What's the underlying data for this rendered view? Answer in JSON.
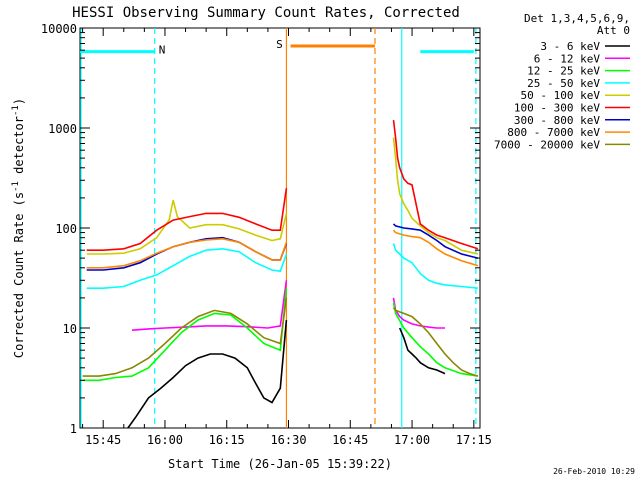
{
  "chart_data": {
    "type": "line",
    "title": "HESSI Observing Summary Count Rates, Corrected",
    "xlabel": "Start Time (26-Jan-05 15:39:22)",
    "ylabel_main": "Corrected Count Rate (s",
    "ylabel_sup1": "-1",
    "ylabel_mid": " detector",
    "ylabel_sup2": "-1",
    "ylabel_end": ")",
    "yscale": "log",
    "ylim": [
      1,
      10000
    ],
    "xlim_minutes": [
      39.37,
      136.5
    ],
    "x_ticks": [
      {
        "m": 45,
        "label": "15:45"
      },
      {
        "m": 60,
        "label": "16:00"
      },
      {
        "m": 75,
        "label": "16:15"
      },
      {
        "m": 90,
        "label": "16:30"
      },
      {
        "m": 105,
        "label": "16:45"
      },
      {
        "m": 120,
        "label": "17:00"
      },
      {
        "m": 135,
        "label": "17:15"
      }
    ],
    "y_ticks": [
      {
        "v": 1,
        "label": "1"
      },
      {
        "v": 10,
        "label": "10"
      },
      {
        "v": 100,
        "label": "100"
      },
      {
        "v": 1000,
        "label": "1000"
      },
      {
        "v": 10000,
        "label": "10000"
      }
    ],
    "legend_header": [
      "Det 1,3,4,5,6,9,",
      "Att 0"
    ],
    "legend_placement": "right",
    "series": [
      {
        "name": "3 - 6 keV",
        "color": "#000000",
        "segments": [
          {
            "x": [
              51,
              53,
              56,
              59,
              62,
              65,
              68,
              71,
              74,
              77,
              80,
              82,
              84,
              86,
              88,
              89.5
            ],
            "y": [
              1.0,
              1.3,
              2,
              2.5,
              3.2,
              4.2,
              5,
              5.5,
              5.5,
              5,
              4,
              2.8,
              2,
              1.8,
              2.5,
              12
            ]
          },
          {
            "x": [
              117,
              118,
              119,
              120,
              121,
              122,
              124,
              126,
              128
            ],
            "y": [
              10,
              8,
              6,
              5.5,
              5,
              4.5,
              4,
              3.8,
              3.5
            ]
          }
        ]
      },
      {
        "name": "6 - 12 keV",
        "color": "#ff00ff",
        "segments": [
          {
            "x": [
              52,
              56,
              60,
              65,
              70,
              75,
              80,
              85,
              88,
              89.5
            ],
            "y": [
              9.5,
              9.8,
              10,
              10.2,
              10.5,
              10.5,
              10.3,
              10,
              10.5,
              30
            ]
          },
          {
            "x": [
              115.5,
              116,
              117,
              118,
              120,
              122,
              124,
              126,
              128
            ],
            "y": [
              20,
              15,
              13,
              12,
              11,
              10.5,
              10.2,
              10,
              10
            ]
          }
        ]
      },
      {
        "name": "12 - 25 keV",
        "color": "#00ff00",
        "segments": [
          {
            "x": [
              40,
              44,
              48,
              52,
              56,
              60,
              64,
              68,
              72,
              76,
              80,
              84,
              88,
              89.5
            ],
            "y": [
              3,
              3,
              3.2,
              3.3,
              4,
              6,
              9,
              12,
              14,
              13.5,
              10,
              7,
              6,
              25
            ]
          },
          {
            "x": [
              115.5,
              116,
              118,
              120,
              122,
              124,
              126,
              128,
              132,
              136
            ],
            "y": [
              18,
              14,
              10,
              8,
              6.5,
              5.5,
              4.5,
              4,
              3.5,
              3.3
            ]
          }
        ]
      },
      {
        "name": "25 - 50 keV",
        "color": "#00ffff",
        "segments": [
          {
            "x": [
              41,
              45,
              50,
              54,
              58,
              62,
              66,
              70,
              74,
              78,
              82,
              86,
              88,
              89.5
            ],
            "y": [
              25,
              25,
              26,
              30,
              34,
              42,
              52,
              60,
              62,
              58,
              45,
              38,
              37,
              55
            ]
          },
          {
            "x": [
              115.5,
              116,
              117,
              118,
              120,
              122,
              124,
              126,
              128,
              132,
              136
            ],
            "y": [
              70,
              60,
              55,
              50,
              45,
              35,
              30,
              28,
              27,
              26,
              25
            ]
          }
        ]
      },
      {
        "name": "50 - 100 keV",
        "color": "#cccc00",
        "segments": [
          {
            "x": [
              41,
              45,
              50,
              54,
              58,
              61,
              62,
              63,
              66,
              70,
              74,
              78,
              82,
              86,
              88,
              89.5
            ],
            "y": [
              55,
              55,
              56,
              62,
              80,
              120,
              190,
              130,
              100,
              108,
              108,
              98,
              85,
              75,
              78,
              140
            ]
          },
          {
            "x": [
              115.5,
              116,
              116.5,
              117,
              118,
              119,
              120,
              122,
              124,
              126,
              128,
              132,
              136
            ],
            "y": [
              800,
              500,
              300,
              220,
              175,
              150,
              125,
              105,
              90,
              80,
              75,
              60,
              55
            ]
          }
        ]
      },
      {
        "name": "100 - 300 keV",
        "color": "#ff0000",
        "segments": [
          {
            "x": [
              41,
              45,
              50,
              54,
              58,
              62,
              66,
              70,
              74,
              78,
              82,
              86,
              88,
              89.5
            ],
            "y": [
              60,
              60,
              62,
              70,
              95,
              120,
              130,
              140,
              140,
              128,
              110,
              95,
              95,
              250
            ]
          },
          {
            "x": [
              115.5,
              116,
              116.5,
              117,
              118,
              119,
              120,
              122,
              124,
              126,
              128,
              132,
              136
            ],
            "y": [
              1200,
              800,
              500,
              400,
              310,
              280,
              270,
              110,
              95,
              85,
              80,
              70,
              62
            ]
          }
        ]
      },
      {
        "name": "300 - 800 keV",
        "color": "#0000cc",
        "segments": [
          {
            "x": [
              41,
              45,
              50,
              54,
              58,
              62,
              66,
              70,
              74,
              78,
              82,
              86,
              88,
              89.5
            ],
            "y": [
              38,
              38,
              40,
              45,
              55,
              65,
              72,
              78,
              80,
              72,
              58,
              48,
              48,
              70
            ]
          },
          {
            "x": [
              115.5,
              116,
              118,
              120,
              122,
              124,
              126,
              128,
              132,
              136
            ],
            "y": [
              110,
              105,
              100,
              98,
              95,
              85,
              75,
              65,
              55,
              50
            ]
          }
        ]
      },
      {
        "name": "800 - 7000 keV",
        "color": "#ff8800",
        "segments": [
          {
            "x": [
              41,
              45,
              50,
              54,
              58,
              62,
              66,
              70,
              74,
              78,
              82,
              86,
              88,
              89.5
            ],
            "y": [
              40,
              40,
              42,
              47,
              56,
              65,
              72,
              76,
              78,
              72,
              58,
              48,
              48,
              72
            ]
          },
          {
            "x": [
              115.5,
              116,
              118,
              120,
              122,
              124,
              126,
              128,
              132,
              136
            ],
            "y": [
              95,
              90,
              85,
              82,
              80,
              72,
              62,
              55,
              47,
              42
            ]
          }
        ]
      },
      {
        "name": "7000 - 20000 keV",
        "color": "#888800",
        "segments": [
          {
            "x": [
              40,
              44,
              48,
              52,
              56,
              60,
              64,
              68,
              72,
              76,
              80,
              84,
              88,
              89.5
            ],
            "y": [
              3.3,
              3.3,
              3.5,
              4,
              5,
              7,
              10,
              13,
              15,
              14,
              11,
              8,
              7,
              20
            ]
          },
          {
            "x": [
              115.5,
              116,
              118,
              120,
              122,
              124,
              126,
              128,
              130,
              132,
              134,
              136
            ],
            "y": [
              16,
              15,
              14,
              13,
              11,
              9,
              7,
              5.5,
              4.5,
              3.8,
              3.5,
              3.3
            ]
          }
        ]
      }
    ],
    "state_bars": [
      {
        "label": "N",
        "color": "#00ffff",
        "segments": [
          [
            39.4,
            57.5
          ],
          [
            122,
            135
          ]
        ],
        "level": 5800,
        "label_at": 59.3
      },
      {
        "label": "S",
        "color": "#ff8000",
        "segments": [
          [
            90.5,
            111
          ]
        ],
        "level": 6600,
        "label_at": 87.8
      }
    ],
    "vertical_lines": [
      {
        "m": 39.6,
        "color": "#00ffff",
        "style": "solid"
      },
      {
        "m": 57.5,
        "color": "#00ffff",
        "style": "dashed"
      },
      {
        "m": 89.5,
        "color": "#ff8000",
        "style": "solid"
      },
      {
        "m": 111,
        "color": "#ff8000",
        "style": "dashed"
      },
      {
        "m": 117.5,
        "color": "#00ffff",
        "style": "solid"
      },
      {
        "m": 135.5,
        "color": "#00ffff",
        "style": "dashed"
      }
    ],
    "timestamp": "26-Feb-2010 10:29"
  }
}
